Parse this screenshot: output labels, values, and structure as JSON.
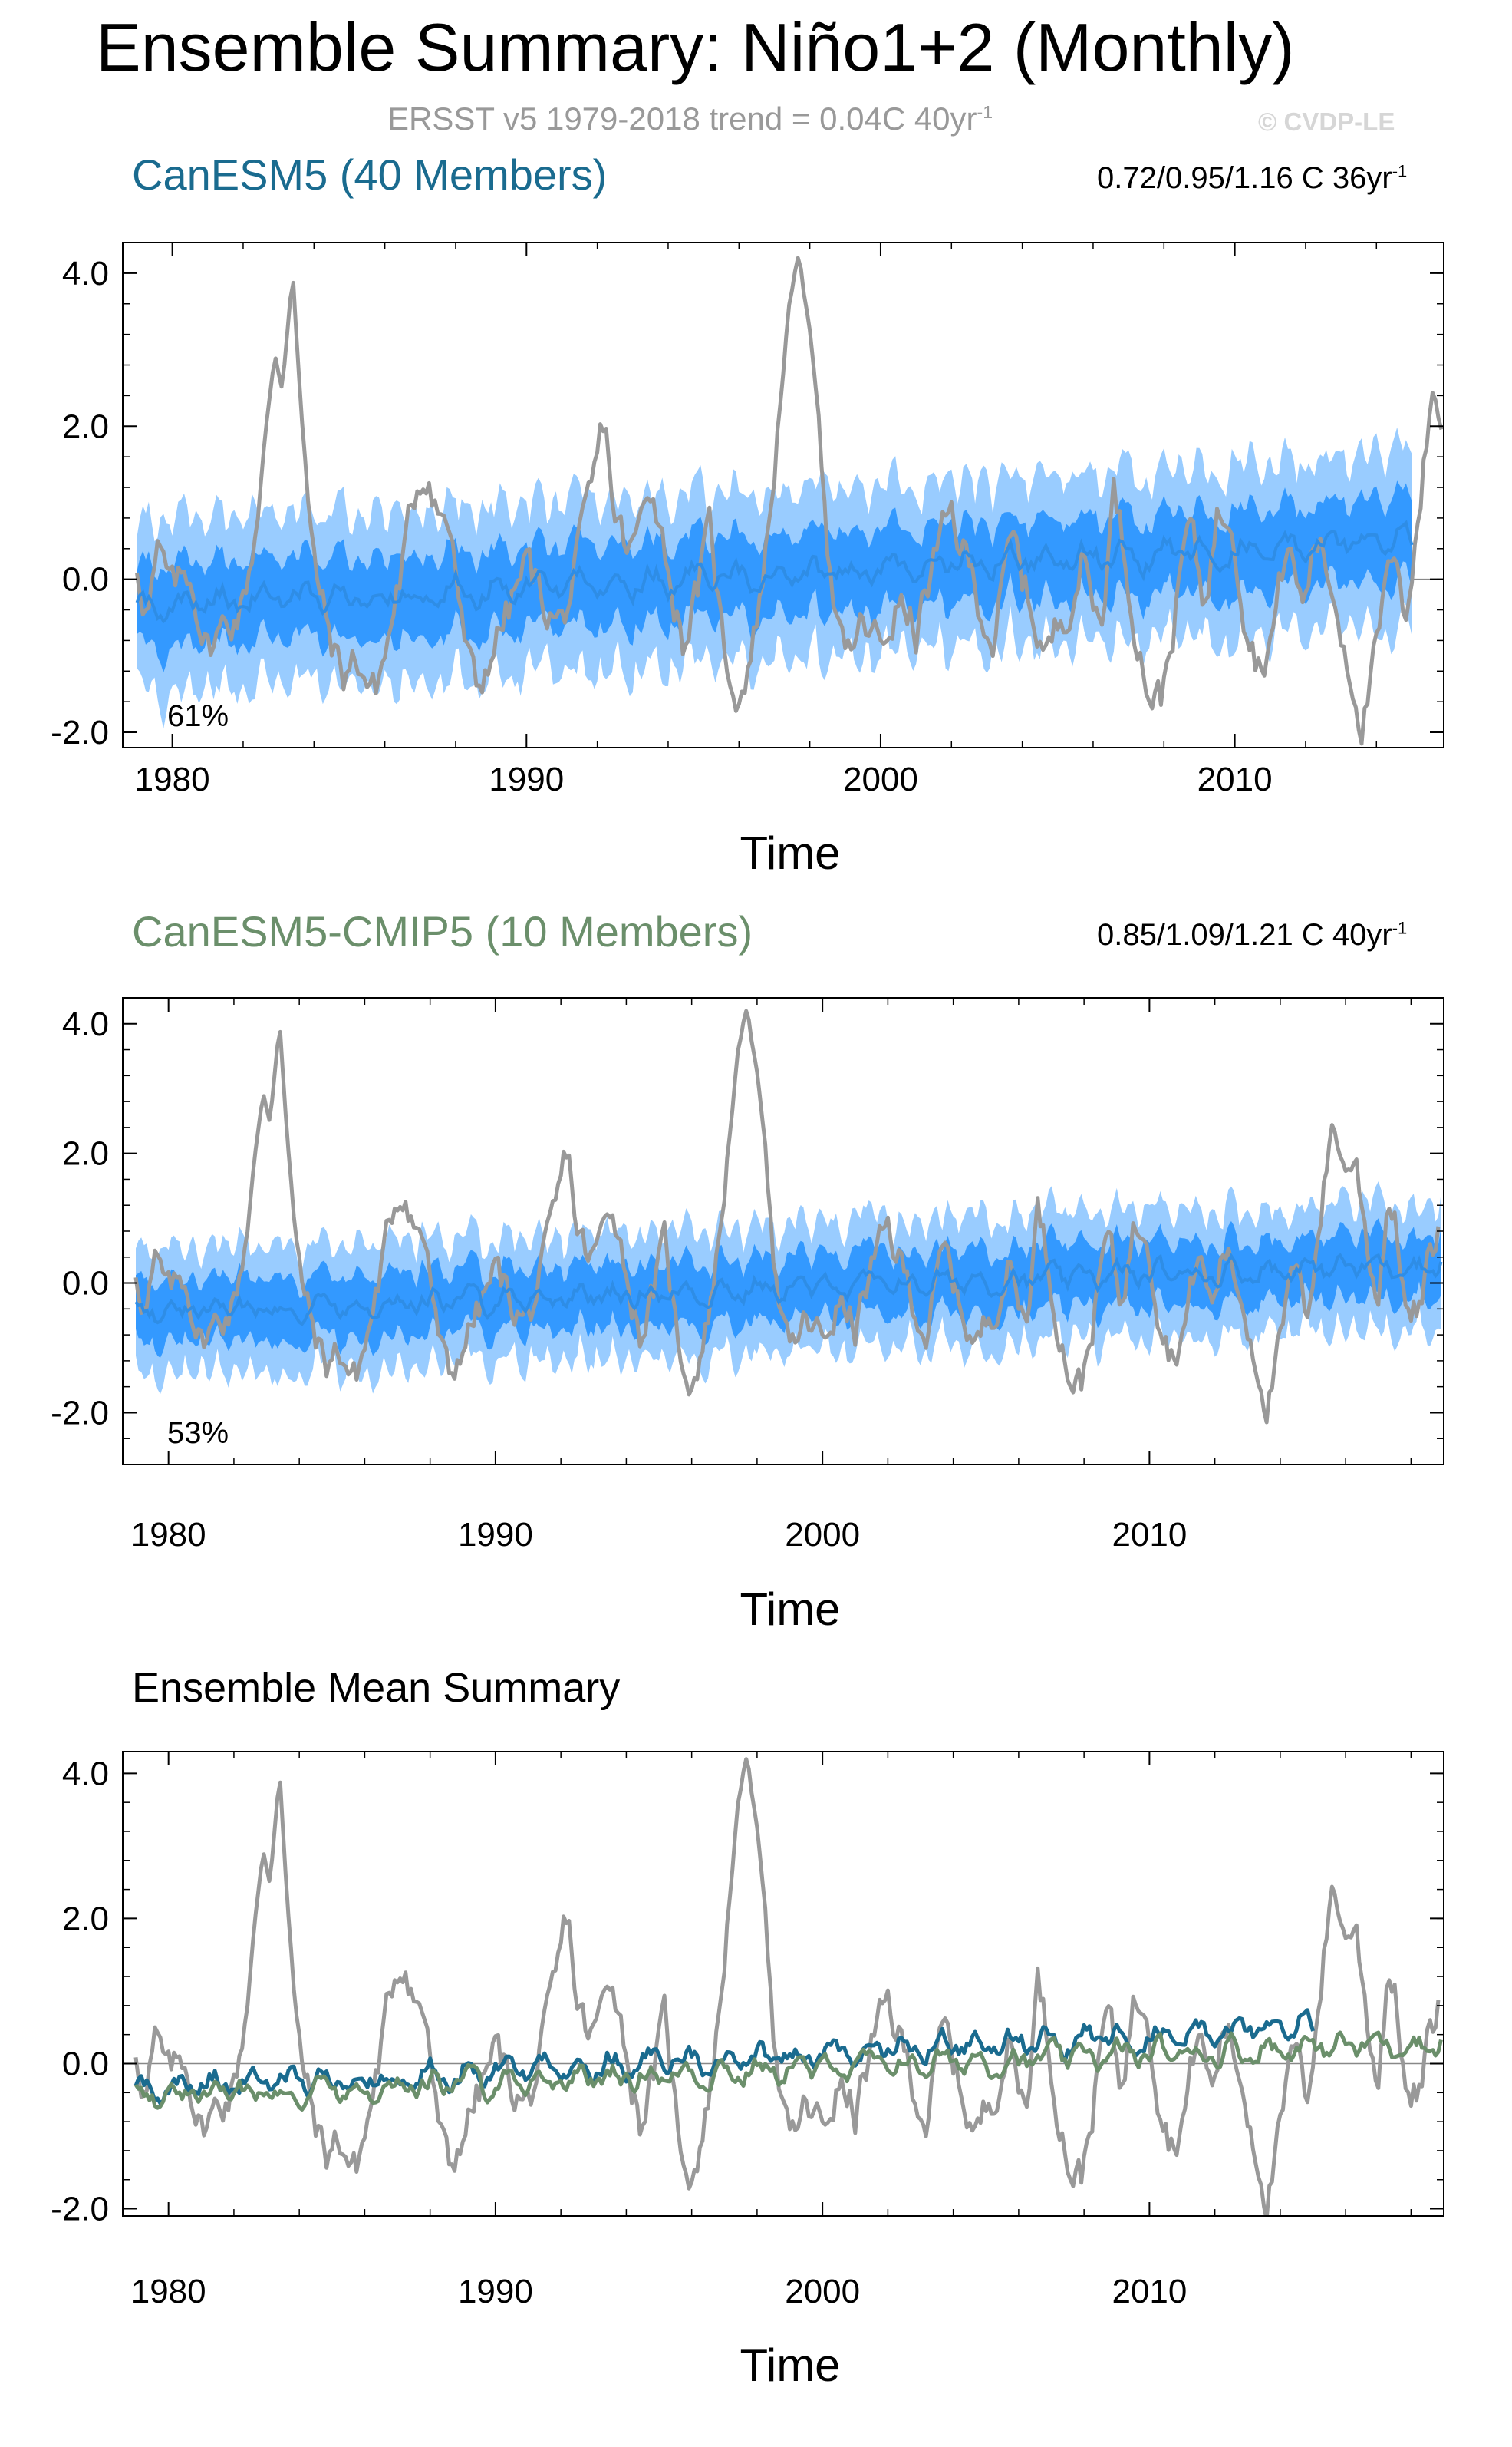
{
  "header": {
    "title": "Ensemble Summary: Niño1+2 (Monthly)",
    "subtitle_text": "ERSST v5 1979-2018 trend = 0.04C 40yr",
    "subtitle_sup": "-1",
    "credit": "© CVDP-LE"
  },
  "colors": {
    "observed": "#999999",
    "band_outer": "#99ccff",
    "band_inner": "#3399ff",
    "mean_line": "#2e8de6",
    "canesm5": "#1a6b8f",
    "cmip5": "#6b8f6b"
  },
  "chart_data": [
    {
      "type": "line",
      "name": "panel-canesm5",
      "title": "CanESM5 (40 Members)",
      "title_color": "#1a6b8f",
      "range_text": "0.72/0.95/1.16 C 36yr",
      "range_sup": "-1",
      "percent": "61%",
      "xlabel": "Time",
      "ylabel": "",
      "xlim": [
        1978.6,
        2015.9
      ],
      "ylim": [
        -2.2,
        4.4
      ],
      "xticks": [
        1980,
        1990,
        2000,
        2010
      ],
      "yticks": [
        -2.0,
        0.0,
        2.0,
        4.0
      ],
      "ytick_labels": [
        "-2.0",
        "0.0",
        "2.0",
        "4.0"
      ],
      "x_start": 1979.0,
      "x_end": 2015.0,
      "series": [
        {
          "name": "Ensemble range (outer)",
          "kind": "band",
          "width": 1.15
        },
        {
          "name": "Ensemble range (inner)",
          "kind": "band",
          "width": 0.55
        },
        {
          "name": "Ensemble mean",
          "kind": "mean",
          "start": -0.35,
          "end": 0.5
        }
      ]
    },
    {
      "type": "line",
      "name": "panel-canesm5-cmip5",
      "title": "CanESM5-CMIP5 (10 Members)",
      "title_color": "#6b8f6b",
      "range_text": "0.85/1.09/1.21 C 40yr",
      "range_sup": "-1",
      "percent": "53%",
      "xlabel": "Time",
      "ylabel": "",
      "xlim": [
        1978.6,
        2019.0
      ],
      "ylim": [
        -2.8,
        4.4
      ],
      "xticks": [
        1980,
        1990,
        2000,
        2010
      ],
      "yticks": [
        -2.0,
        0.0,
        2.0,
        4.0
      ],
      "ytick_labels": [
        "-2.0",
        "0.0",
        "2.0",
        "4.0"
      ],
      "x_start": 1979.0,
      "x_end": 2018.9,
      "series": [
        {
          "name": "Ensemble range (outer)",
          "kind": "band",
          "width": 1.0
        },
        {
          "name": "Ensemble range (inner)",
          "kind": "band",
          "width": 0.5
        },
        {
          "name": "Ensemble mean",
          "kind": "mean",
          "start": -0.45,
          "end": 0.3
        }
      ]
    },
    {
      "type": "line",
      "name": "panel-ensemble-mean-summary",
      "title": "Ensemble Mean Summary",
      "title_color": "#000000",
      "xlabel": "Time",
      "ylabel": "",
      "xlim": [
        1978.6,
        2019.0
      ],
      "ylim": [
        -2.1,
        4.3
      ],
      "xticks": [
        1980,
        1990,
        2000,
        2010
      ],
      "yticks": [
        -2.0,
        0.0,
        2.0,
        4.0
      ],
      "ytick_labels": [
        "-2.0",
        "0.0",
        "2.0",
        "4.0"
      ],
      "series": [
        {
          "name": "CanESM5 ensemble mean",
          "kind": "mean",
          "color": "#1a6b8f",
          "x_start": 1979.0,
          "x_end": 2015.0,
          "start": -0.35,
          "end": 0.5
        },
        {
          "name": "CanESM5-CMIP5 ensemble mean",
          "kind": "mean",
          "color": "#6b8f6b",
          "x_start": 1979.0,
          "x_end": 2018.9,
          "start": -0.45,
          "end": 0.3
        }
      ]
    }
  ],
  "observed_series": {
    "name": "ERSST v5 observed",
    "x_start": 1979.0,
    "x_end": 2018.9,
    "keypoints": [
      [
        1979.0,
        0.2
      ],
      [
        1979.3,
        -0.4
      ],
      [
        1979.6,
        0.3
      ],
      [
        1980.0,
        -0.2
      ],
      [
        1980.5,
        0.1
      ],
      [
        1981.0,
        -0.9
      ],
      [
        1981.5,
        -0.6
      ],
      [
        1982.0,
        -0.3
      ],
      [
        1982.3,
        0.5
      ],
      [
        1982.6,
        1.8
      ],
      [
        1982.9,
        2.9
      ],
      [
        1983.1,
        2.5
      ],
      [
        1983.4,
        4.05
      ],
      [
        1983.6,
        2.5
      ],
      [
        1983.9,
        0.5
      ],
      [
        1984.3,
        -0.5
      ],
      [
        1984.8,
        -1.3
      ],
      [
        1985.2,
        -1.0
      ],
      [
        1985.7,
        -1.5
      ],
      [
        1986.1,
        -0.8
      ],
      [
        1986.5,
        0.2
      ],
      [
        1986.9,
        1.2
      ],
      [
        1987.2,
        1.5
      ],
      [
        1987.6,
        0.8
      ],
      [
        1987.9,
        0.6
      ],
      [
        1988.2,
        -0.7
      ],
      [
        1988.6,
        -1.6
      ],
      [
        1989.0,
        -0.9
      ],
      [
        1989.5,
        -0.4
      ],
      [
        1990.0,
        0.2
      ],
      [
        1990.5,
        -0.3
      ],
      [
        1991.0,
        -0.6
      ],
      [
        1991.5,
        0.3
      ],
      [
        1991.9,
        1.2
      ],
      [
        1992.2,
        2.1
      ],
      [
        1992.5,
        0.8
      ],
      [
        1992.9,
        0.3
      ],
      [
        1993.3,
        0.8
      ],
      [
        1993.6,
        1.3
      ],
      [
        1994.0,
        0.2
      ],
      [
        1994.4,
        -0.8
      ],
      [
        1994.8,
        -0.2
      ],
      [
        1995.2,
        0.6
      ],
      [
        1995.6,
        -1.0
      ],
      [
        1996.0,
        -1.5
      ],
      [
        1996.4,
        -0.8
      ],
      [
        1996.8,
        0.5
      ],
      [
        1997.1,
        2.0
      ],
      [
        1997.4,
        3.5
      ],
      [
        1997.7,
        4.25
      ],
      [
        1998.0,
        3.2
      ],
      [
        1998.3,
        2.0
      ],
      [
        1998.6,
        0.0
      ],
      [
        1999.0,
        -1.2
      ],
      [
        1999.5,
        -0.6
      ],
      [
        2000.0,
        -0.9
      ],
      [
        2000.5,
        -0.3
      ],
      [
        2001.0,
        -0.7
      ],
      [
        2001.5,
        0.2
      ],
      [
        2002.0,
        0.8
      ],
      [
        2002.4,
        0.3
      ],
      [
        2002.8,
        -0.3
      ],
      [
        2003.2,
        -0.8
      ],
      [
        2003.7,
        0.5
      ],
      [
        2004.2,
        -0.3
      ],
      [
        2004.7,
        -1.0
      ],
      [
        2005.2,
        -0.4
      ],
      [
        2005.7,
        0.3
      ],
      [
        2006.2,
        -0.6
      ],
      [
        2006.6,
        1.2
      ],
      [
        2007.0,
        0.0
      ],
      [
        2007.5,
        -1.3
      ],
      [
        2007.9,
        -1.6
      ],
      [
        2008.3,
        -0.5
      ],
      [
        2008.7,
        0.8
      ],
      [
        2009.1,
        -0.3
      ],
      [
        2009.5,
        0.8
      ],
      [
        2009.9,
        1.0
      ],
      [
        2010.3,
        -0.4
      ],
      [
        2010.7,
        -1.1
      ],
      [
        2011.1,
        -0.6
      ],
      [
        2011.5,
        0.5
      ],
      [
        2011.9,
        -0.4
      ],
      [
        2012.3,
        0.6
      ],
      [
        2012.8,
        -0.2
      ],
      [
        2013.2,
        -1.0
      ],
      [
        2013.6,
        -1.8
      ],
      [
        2014.0,
        -1.0
      ],
      [
        2014.4,
        0.2
      ],
      [
        2014.8,
        -0.5
      ],
      [
        2015.2,
        1.0
      ],
      [
        2015.6,
        2.5
      ],
      [
        2015.9,
        1.8
      ],
      [
        2016.3,
        1.9
      ],
      [
        2016.7,
        0.5
      ],
      [
        2017.0,
        -0.2
      ],
      [
        2017.3,
        1.4
      ],
      [
        2017.6,
        0.7
      ],
      [
        2017.9,
        -0.6
      ],
      [
        2018.3,
        -0.4
      ],
      [
        2018.6,
        0.4
      ],
      [
        2018.9,
        0.9
      ]
    ]
  }
}
